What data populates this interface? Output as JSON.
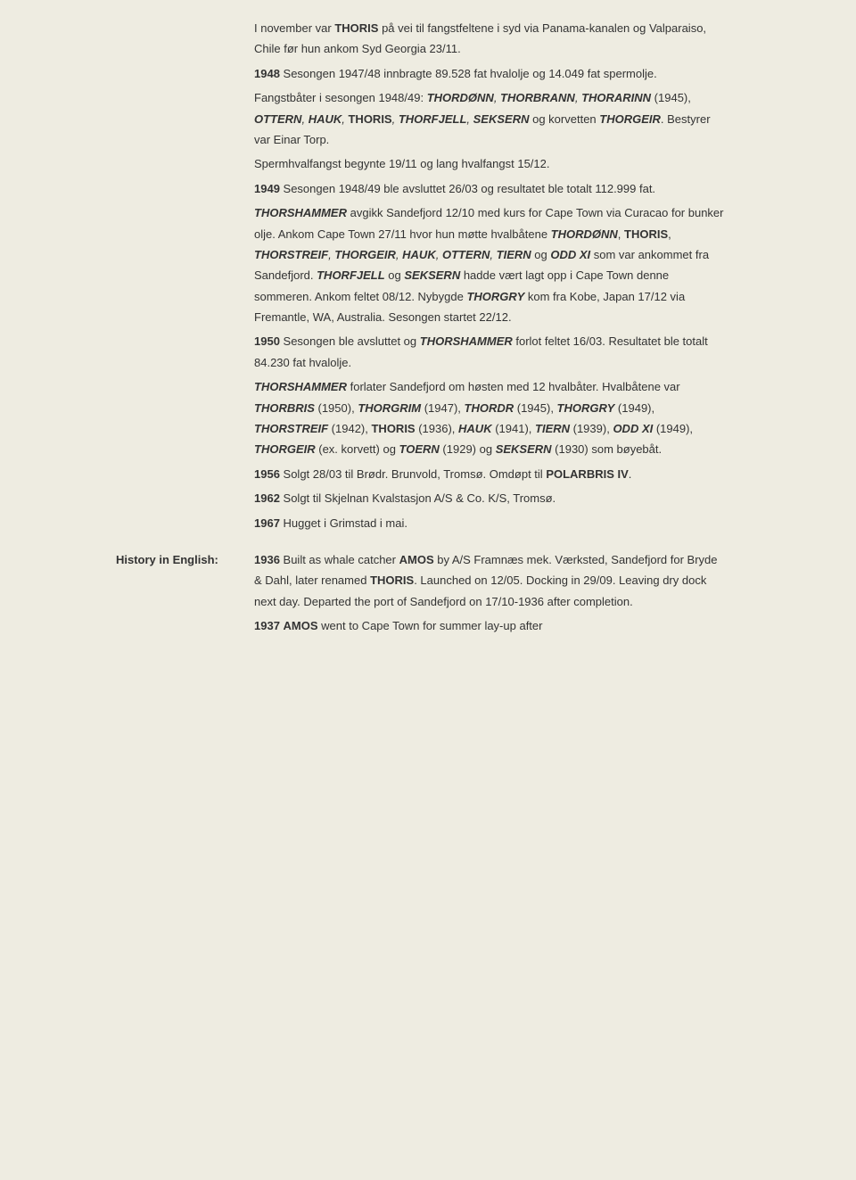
{
  "colors": {
    "background": "#eeece1",
    "text": "#333333"
  },
  "typography": {
    "font_family": "Verdana, Geneva, sans-serif",
    "font_size_pt": 10,
    "line_height": 1.8
  },
  "main": {
    "p1": {
      "s1": "I november var ",
      "s2": "THORIS",
      "s3": " på vei til fangstfeltene i syd via Panama-kanalen og Valparaiso, Chile før hun ankom Syd Georgia 23/11."
    },
    "p2": {
      "s1": "1948",
      "s2": " Sesongen 1947/48 innbragte 89.528 fat hvalolje og 14.049 fat spermolje."
    },
    "p3": {
      "s1": "Fangstbåter i sesongen 1948/49: ",
      "s2": "THORDØNN",
      "s3": ", ",
      "s4": "THORBRANN",
      "s5": ", ",
      "s6": "THORARINN",
      "s7": " (1945), ",
      "s8": "OTTERN",
      "s9": ", ",
      "s10": "HAUK",
      "s11": ", ",
      "s12": "THORIS",
      "s13": ", ",
      "s14": "THORFJELL",
      "s15": ", ",
      "s16": "SEKSERN",
      "s17": " og korvetten ",
      "s18": "THORGEIR",
      "s19": ". Bestyrer var Einar Torp."
    },
    "p4": {
      "s1": "Spermhvalfangst begynte 19/11 og lang hvalfangst 15/12."
    },
    "p5": {
      "s1": "1949",
      "s2": " Sesongen 1948/49 ble avsluttet 26/03 og resultatet ble totalt 112.999 fat."
    },
    "p6": {
      "s1": "THORSHAMMER",
      "s2": " avgikk Sandefjord 12/10 med kurs for Cape Town via Curacao for bunker olje. Ankom Cape Town 27/11 hvor hun møtte hvalbåtene ",
      "s3": "THORDØNN",
      "s4": ", ",
      "s5": "THORIS",
      "s6": ", ",
      "s7": "THORSTREIF",
      "s8": ", ",
      "s9": "THORGEIR",
      "s10": ", ",
      "s11": "HAUK",
      "s12": ", ",
      "s13": "OTTERN",
      "s14": ", ",
      "s15": "TIERN",
      "s16": " og ",
      "s17": "ODD XI",
      "s18": " som var ankommet fra Sandefjord. ",
      "s19": "THORFJELL",
      "s20": " og ",
      "s21": "SEKSERN",
      "s22": " hadde vært lagt opp i Cape Town denne sommeren. Ankom feltet 08/12. Nybygde ",
      "s23": "THORGRY",
      "s24": " kom fra Kobe, Japan 17/12 via Fremantle, WA, Australia. Sesongen startet 22/12."
    },
    "p7": {
      "s1": "1950",
      "s2": " Sesongen ble avsluttet og ",
      "s3": "THORSHAMMER",
      "s4": " forlot feltet 16/03. Resultatet ble totalt 84.230 fat hvalolje."
    },
    "p8": {
      "s1": "THORSHAMMER",
      "s2": " forlater Sandefjord om høsten med 12 hvalbåter. Hvalbåtene var ",
      "s3": "THORBRIS",
      "s4": " (1950), ",
      "s5": "THORGRIM",
      "s6": " (1947), ",
      "s7": "THORDR",
      "s8": " (1945), ",
      "s9": "THORGRY",
      "s10": " (1949), ",
      "s11": "THORSTREIF",
      "s12": " (1942), ",
      "s13": "THORIS",
      "s14": " (1936), ",
      "s15": "HAUK",
      "s16": " (1941), ",
      "s17": "TIERN",
      "s18": " (1939), ",
      "s19": "ODD XI",
      "s20": " (1949), ",
      "s21": "THORGEIR",
      "s22": " (ex. korvett) og ",
      "s23": "TOERN",
      "s24": " (1929) og ",
      "s25": "SEKSERN",
      "s26": " (1930) som bøyebåt."
    },
    "p9": {
      "s1": "1956",
      "s2": " Solgt 28/03 til Brødr. Brunvold, Tromsø. Omdøpt til ",
      "s3": "POLARBRIS IV",
      "s4": "."
    },
    "p10": {
      "s1": "1962",
      "s2": " Solgt til Skjelnan Kvalstasjon A/S & Co. K/S, Tromsø."
    },
    "p11": {
      "s1": "1967",
      "s2": " Hugget i Grimstad i mai."
    }
  },
  "history": {
    "label": "History in English:",
    "p1": {
      "s1": "1936",
      "s2": " Built as whale catcher ",
      "s3": "AMOS",
      "s4": " by A/S Framnæs mek. Værksted, Sandefjord for Bryde & Dahl, later renamed ",
      "s5": "THORIS",
      "s6": ". Launched on 12/05. Docking in 29/09. Leaving dry dock next day. Departed the port of Sandefjord on 17/10-1936 after completion."
    },
    "p2": {
      "s1": "1937",
      "s2": " ",
      "s3": "AMOS",
      "s4": " went to Cape Town for summer lay-up after"
    }
  }
}
